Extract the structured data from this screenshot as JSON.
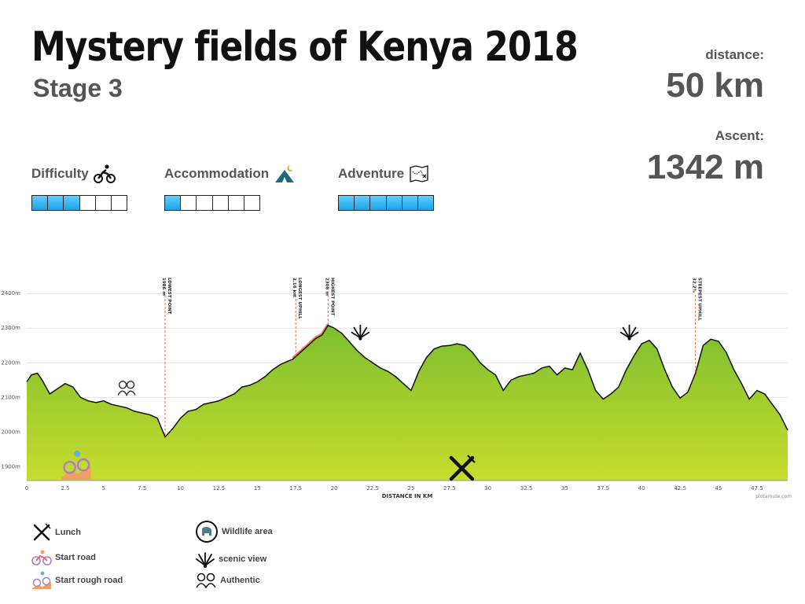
{
  "header": {
    "title": "Mystery fields of Kenya 2018",
    "stage": "Stage 3",
    "distance_label": "distance:",
    "distance_value": "50 km",
    "ascent_label": "Ascent:",
    "ascent_value": "1342 m"
  },
  "ratings": [
    {
      "label": "Difficulty",
      "icon": "cyclist-icon",
      "filled": 3,
      "total": 6
    },
    {
      "label": "Accommodation",
      "icon": "tent-icon",
      "filled": 1,
      "total": 6
    },
    {
      "label": "Adventure",
      "icon": "map-icon",
      "filled": 6,
      "total": 6
    }
  ],
  "chart_data": {
    "type": "area",
    "xlabel": "DISTANCE IN KM",
    "credit": "plotaroute.com",
    "xlim": [
      0,
      49.5
    ],
    "ylim": [
      1860,
      2430
    ],
    "x_ticks": [
      "0",
      "2.5",
      "5",
      "7.5",
      "10",
      "12.5",
      "15",
      "17.5",
      "20",
      "22.5",
      "25",
      "27.5",
      "30",
      "32.5",
      "35",
      "37.5",
      "40",
      "42.5",
      "45",
      "47.5"
    ],
    "y_ticks": [
      {
        "value": 1900,
        "label": "1900m"
      },
      {
        "value": 2000,
        "label": "2000m"
      },
      {
        "value": 2100,
        "label": "2100m"
      },
      {
        "value": 2200,
        "label": "2200m"
      },
      {
        "value": 2300,
        "label": "2300m"
      },
      {
        "value": 2400,
        "label": "2400m"
      }
    ],
    "profile": [
      [
        0,
        2145
      ],
      [
        0.3,
        2165
      ],
      [
        0.7,
        2170
      ],
      [
        1.0,
        2150
      ],
      [
        1.5,
        2110
      ],
      [
        2.0,
        2125
      ],
      [
        2.5,
        2140
      ],
      [
        3.0,
        2130
      ],
      [
        3.5,
        2100
      ],
      [
        4.0,
        2090
      ],
      [
        4.5,
        2085
      ],
      [
        5.0,
        2090
      ],
      [
        5.5,
        2080
      ],
      [
        6.0,
        2075
      ],
      [
        6.5,
        2070
      ],
      [
        7.0,
        2060
      ],
      [
        7.5,
        2055
      ],
      [
        8.0,
        2050
      ],
      [
        8.5,
        2040
      ],
      [
        9.0,
        1986
      ],
      [
        9.5,
        2010
      ],
      [
        10.0,
        2040
      ],
      [
        10.5,
        2060
      ],
      [
        11.0,
        2065
      ],
      [
        11.5,
        2080
      ],
      [
        12.0,
        2085
      ],
      [
        12.5,
        2090
      ],
      [
        13.0,
        2100
      ],
      [
        13.5,
        2110
      ],
      [
        14.0,
        2130
      ],
      [
        14.5,
        2135
      ],
      [
        15.0,
        2145
      ],
      [
        15.5,
        2160
      ],
      [
        16.0,
        2180
      ],
      [
        16.5,
        2195
      ],
      [
        17.0,
        2205
      ],
      [
        17.3,
        2210
      ],
      [
        17.8,
        2230
      ],
      [
        18.3,
        2250
      ],
      [
        18.8,
        2270
      ],
      [
        19.2,
        2280
      ],
      [
        19.6,
        2308
      ],
      [
        20.0,
        2300
      ],
      [
        20.5,
        2285
      ],
      [
        21.0,
        2260
      ],
      [
        21.5,
        2235
      ],
      [
        22.0,
        2215
      ],
      [
        22.5,
        2200
      ],
      [
        23.0,
        2185
      ],
      [
        23.5,
        2175
      ],
      [
        24.0,
        2160
      ],
      [
        24.5,
        2140
      ],
      [
        25.0,
        2120
      ],
      [
        25.5,
        2175
      ],
      [
        26.0,
        2215
      ],
      [
        26.5,
        2240
      ],
      [
        27.0,
        2248
      ],
      [
        27.5,
        2250
      ],
      [
        28.0,
        2255
      ],
      [
        28.5,
        2250
      ],
      [
        29.0,
        2230
      ],
      [
        29.5,
        2200
      ],
      [
        30.0,
        2180
      ],
      [
        30.5,
        2165
      ],
      [
        31.0,
        2120
      ],
      [
        31.5,
        2150
      ],
      [
        32.0,
        2160
      ],
      [
        32.5,
        2165
      ],
      [
        33.0,
        2170
      ],
      [
        33.5,
        2185
      ],
      [
        34.0,
        2190
      ],
      [
        34.5,
        2165
      ],
      [
        35.0,
        2185
      ],
      [
        35.5,
        2180
      ],
      [
        36.0,
        2228
      ],
      [
        36.5,
        2180
      ],
      [
        37.0,
        2120
      ],
      [
        37.5,
        2095
      ],
      [
        38.0,
        2110
      ],
      [
        38.5,
        2130
      ],
      [
        39.0,
        2180
      ],
      [
        39.5,
        2220
      ],
      [
        40.0,
        2255
      ],
      [
        40.5,
        2265
      ],
      [
        41.0,
        2240
      ],
      [
        41.5,
        2180
      ],
      [
        42.0,
        2130
      ],
      [
        42.5,
        2098
      ],
      [
        43.0,
        2115
      ],
      [
        43.5,
        2170
      ],
      [
        44.0,
        2250
      ],
      [
        44.5,
        2268
      ],
      [
        45.0,
        2262
      ],
      [
        45.5,
        2230
      ],
      [
        46.0,
        2180
      ],
      [
        46.5,
        2140
      ],
      [
        47.0,
        2095
      ],
      [
        47.5,
        2120
      ],
      [
        48.0,
        2110
      ],
      [
        48.5,
        2080
      ],
      [
        49.0,
        2050
      ],
      [
        49.5,
        2005
      ]
    ],
    "annotations": [
      {
        "x": 9.0,
        "label": "LOWEST POINT",
        "value": "1986 m"
      },
      {
        "x": 17.5,
        "label": "LONGEST UPHILL",
        "value": "2.16 km"
      },
      {
        "x": 19.6,
        "label": "HIGHEST POINT",
        "value": "2308 m"
      },
      {
        "x": 43.5,
        "label": "STEEPEST UPHILL",
        "value": "32.2%"
      }
    ],
    "longest_uphill_range": [
      17.3,
      19.6
    ],
    "markers": [
      {
        "x": 3.2,
        "elev": 1905,
        "icon": "start-rough-road-icon"
      },
      {
        "x": 6.5,
        "elev": 2125,
        "icon": "authentic-icon"
      },
      {
        "x": 21.7,
        "elev": 2290,
        "icon": "scenic-view-icon"
      },
      {
        "x": 28.3,
        "elev": 1895,
        "icon": "lunch-icon"
      },
      {
        "x": 39.2,
        "elev": 2290,
        "icon": "scenic-view-icon"
      }
    ]
  },
  "legend": [
    {
      "icon": "lunch-icon",
      "label": "Lunch"
    },
    {
      "icon": "start-road-icon",
      "label": "Start road"
    },
    {
      "icon": "start-rough-road-icon",
      "label": "Start rough road"
    },
    {
      "icon": "wildlife-icon",
      "label": "Wildlife area"
    },
    {
      "icon": "scenic-view-icon",
      "label": "scenic view"
    },
    {
      "icon": "authentic-icon",
      "label": "Authentic"
    }
  ]
}
